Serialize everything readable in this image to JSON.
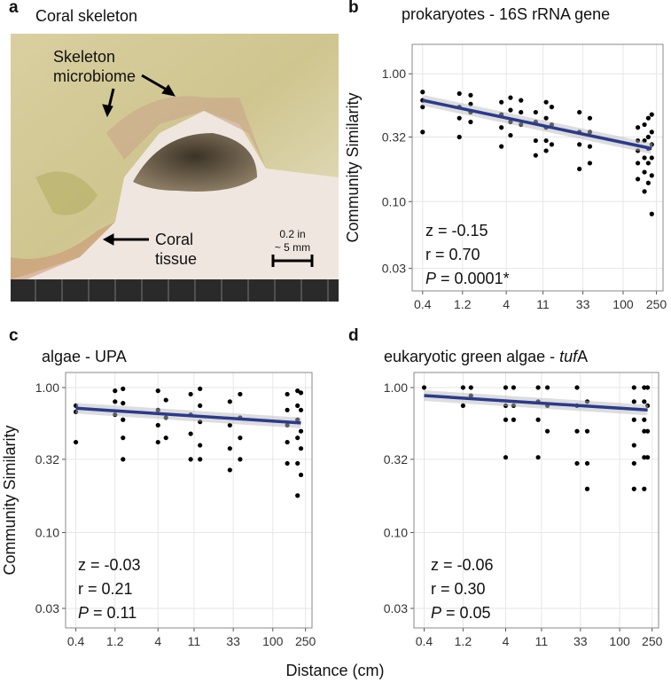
{
  "panel_a": {
    "panel_label": "a",
    "title": "Coral skeleton",
    "label_microbiome_1": "Skeleton",
    "label_microbiome_2": "microbiome",
    "label_tissue_1": "Coral",
    "label_tissue_2": "tissue",
    "scale_1": "0.2 in",
    "scale_2": "~ 5 mm"
  },
  "x_label": "Distance (cm)",
  "chart_data": [
    {
      "type": "scatter",
      "panel_label": "b",
      "title": "prokaryotes - 16S rRNA gene",
      "y_label": "Community Similarity",
      "log_x": true,
      "log_y": true,
      "grid": true,
      "xlim": [
        0.3,
        300
      ],
      "xticks": [
        0.4,
        1.2,
        4,
        11,
        33,
        100,
        250
      ],
      "ylim": [
        0.02,
        1.7
      ],
      "yticks": [
        0.03,
        {
          "value": 0.1,
          "label": "0.10"
        },
        0.32,
        {
          "value": 1,
          "label": "1.00"
        }
      ],
      "series": [
        {
          "color": "#000000",
          "x": [
            0.4,
            0.4,
            0.4,
            0.4,
            1.1,
            1.1,
            1.1,
            1.1,
            1.5,
            1.5,
            1.5,
            1.5,
            3.5,
            3.5,
            3.5,
            3.5,
            4.5,
            4.5,
            4.5,
            4.5,
            6,
            6,
            6,
            9,
            9,
            9,
            9,
            12,
            12,
            12,
            12,
            12,
            14,
            14,
            14,
            30,
            30,
            30,
            30,
            40,
            40,
            40,
            40,
            150,
            150,
            150,
            150,
            150,
            180,
            180,
            180,
            180,
            180,
            200,
            200,
            200,
            200,
            200,
            220,
            220,
            220,
            220,
            220,
            220
          ],
          "values": [
            0.72,
            0.62,
            0.55,
            0.35,
            0.7,
            0.55,
            0.45,
            0.32,
            0.68,
            0.58,
            0.5,
            0.42,
            0.6,
            0.48,
            0.38,
            0.27,
            0.65,
            0.52,
            0.42,
            0.33,
            0.62,
            0.5,
            0.4,
            0.5,
            0.42,
            0.3,
            0.23,
            0.6,
            0.45,
            0.38,
            0.3,
            0.25,
            0.55,
            0.4,
            0.28,
            0.5,
            0.35,
            0.28,
            0.18,
            0.45,
            0.35,
            0.27,
            0.2,
            0.38,
            0.3,
            0.25,
            0.2,
            0.15,
            0.4,
            0.3,
            0.22,
            0.17,
            0.12,
            0.45,
            0.32,
            0.26,
            0.2,
            0.14,
            0.48,
            0.35,
            0.28,
            0.22,
            0.16,
            0.08
          ]
        }
      ],
      "fit": {
        "color": "#2b3a8c",
        "x": [
          0.4,
          220
        ],
        "y": [
          0.62,
          0.26
        ]
      },
      "stats": [
        "z = -0.15",
        "r = 0.70"
      ],
      "p_symbol": "P",
      "p_text": "= 0.0001*"
    },
    {
      "type": "scatter",
      "panel_label": "c",
      "title": "algae - UPA",
      "y_label": "Community Similarity",
      "log_x": true,
      "log_y": true,
      "grid": true,
      "xlim": [
        0.3,
        300
      ],
      "xticks": [
        0.4,
        1.2,
        4,
        11,
        33,
        100,
        250
      ],
      "ylim": [
        0.022,
        1.27
      ],
      "yticks": [
        0.03,
        {
          "value": 0.1,
          "label": "0.10"
        },
        0.32,
        {
          "value": 1,
          "label": "1.00"
        }
      ],
      "series": [
        {
          "color": "#000000",
          "x": [
            0.4,
            0.4,
            0.4,
            1.2,
            1.2,
            1.2,
            1.5,
            1.5,
            1.5,
            1.5,
            1.5,
            4,
            4,
            4,
            4,
            5,
            5,
            5,
            10,
            10,
            10,
            10,
            13,
            13,
            13,
            13,
            13,
            30,
            30,
            30,
            30,
            40,
            40,
            40,
            40,
            150,
            150,
            150,
            150,
            150,
            200,
            200,
            200,
            200,
            200,
            200,
            220,
            220,
            220,
            220,
            220
          ],
          "values": [
            0.75,
            0.68,
            0.42,
            0.95,
            0.8,
            0.65,
            0.98,
            0.78,
            0.6,
            0.45,
            0.32,
            0.95,
            0.7,
            0.55,
            0.42,
            0.82,
            0.62,
            0.45,
            0.9,
            0.65,
            0.48,
            0.32,
            0.98,
            0.75,
            0.58,
            0.4,
            0.32,
            0.8,
            0.55,
            0.38,
            0.27,
            0.9,
            0.62,
            0.45,
            0.32,
            0.9,
            0.7,
            0.55,
            0.42,
            0.3,
            0.95,
            0.75,
            0.6,
            0.45,
            0.3,
            0.18,
            0.92,
            0.7,
            0.5,
            0.38,
            0.25
          ]
        }
      ],
      "fit": {
        "color": "#2b3a8c",
        "x": [
          0.4,
          220
        ],
        "y": [
          0.72,
          0.57
        ]
      },
      "stats": [
        "z = -0.03",
        "r = 0.21"
      ],
      "p_symbol": "P",
      "p_text": "= 0.11"
    },
    {
      "type": "scatter",
      "panel_label": "d",
      "title_parts": [
        {
          "text": "eukaryotic green algae - ",
          "italic": false
        },
        {
          "text": "tuf",
          "italic": true
        },
        {
          "text": "A",
          "italic": false
        }
      ],
      "log_x": true,
      "log_y": true,
      "grid": true,
      "xlim": [
        0.3,
        300
      ],
      "xticks": [
        0.4,
        1.2,
        4,
        11,
        33,
        100,
        250
      ],
      "ylim": [
        0.022,
        1.27
      ],
      "yticks": [
        0.03,
        {
          "value": 0.1,
          "label": "0.10"
        },
        0.32,
        {
          "value": 1,
          "label": "1.00"
        }
      ],
      "series": [
        {
          "color": "#000000",
          "x": [
            0.4,
            1.2,
            1.2,
            1.5,
            1.5,
            4,
            4,
            4,
            4,
            5,
            5,
            5,
            10,
            10,
            10,
            10,
            13,
            13,
            13,
            30,
            30,
            30,
            30,
            40,
            40,
            40,
            40,
            150,
            150,
            150,
            150,
            150,
            150,
            200,
            200,
            200,
            200,
            200,
            200,
            220,
            220,
            220,
            220
          ],
          "values": [
            1.0,
            1.0,
            0.75,
            1.0,
            0.88,
            1.0,
            0.75,
            0.6,
            0.33,
            1.0,
            0.75,
            0.6,
            1.0,
            0.8,
            0.6,
            0.33,
            1.0,
            0.75,
            0.5,
            1.0,
            0.75,
            0.5,
            0.3,
            0.8,
            0.5,
            0.3,
            0.2,
            1.0,
            0.8,
            0.6,
            0.4,
            0.3,
            0.2,
            1.0,
            0.8,
            0.6,
            0.5,
            0.33,
            0.2,
            1.0,
            0.75,
            0.5,
            0.33
          ]
        }
      ],
      "fit": {
        "color": "#2b3a8c",
        "x": [
          0.4,
          220
        ],
        "y": [
          0.88,
          0.7
        ]
      },
      "stats": [
        "z = -0.06",
        "r = 0.30"
      ],
      "p_symbol": "P",
      "p_text": "= 0.05"
    }
  ]
}
